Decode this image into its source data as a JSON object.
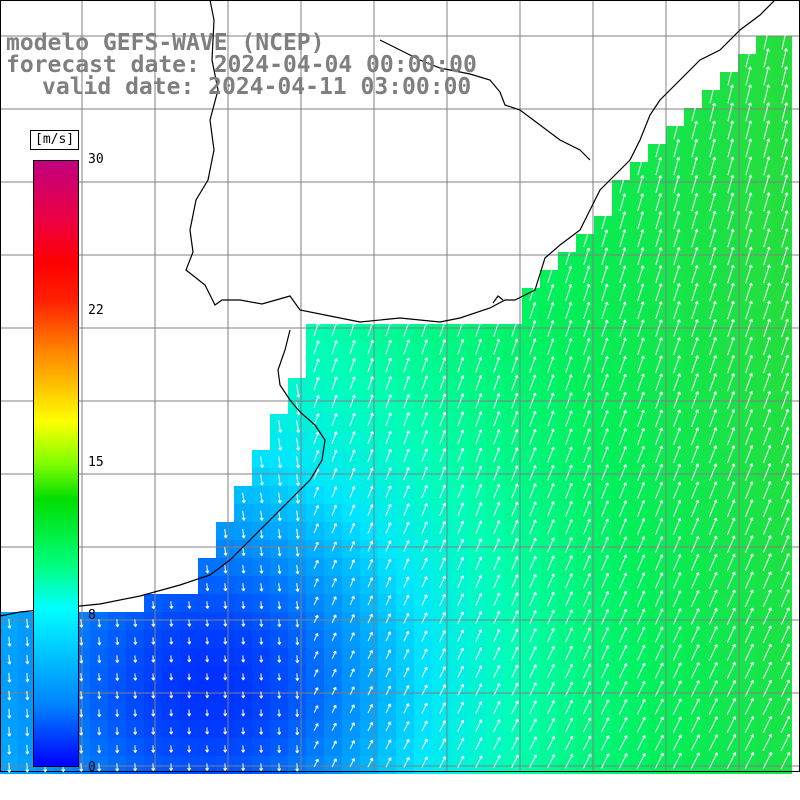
{
  "title": {
    "line1": "modelo GEFS-WAVE (NCEP)",
    "line2": "forecast date: 2024-04-04 00:00:00",
    "line3": "valid date: 2024-04-11 03:00:00"
  },
  "colorbar": {
    "unit": "[m/s]",
    "ticks": [
      "30",
      "22",
      "15",
      "8",
      "0"
    ],
    "min": 0,
    "max": 30
  },
  "colors": {
    "background": "#ffffff",
    "land": "#ffffff",
    "grid": "#808080",
    "coastline": "#000000",
    "arrows": "#ffffff",
    "title": "#7f7f7f"
  }
}
